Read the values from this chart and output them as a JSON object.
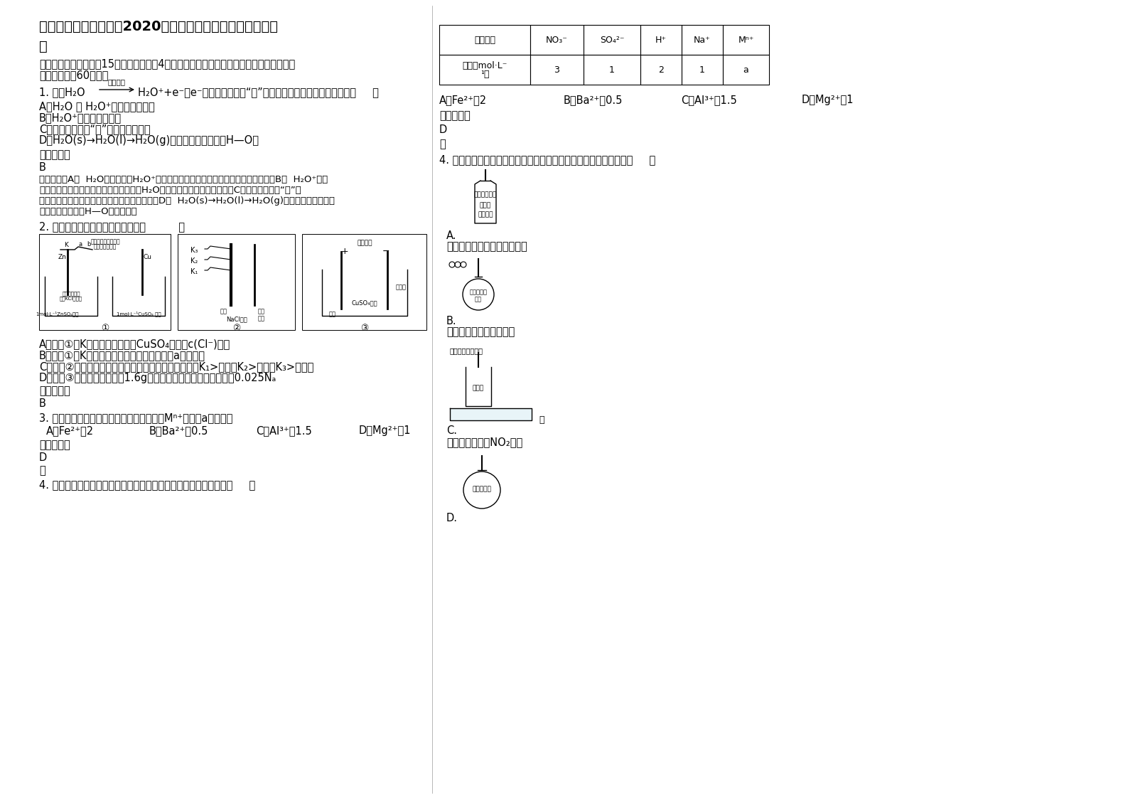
{
  "bg_color": "#ffffff",
  "title_line1": "四川省达州市陶成中学2020年高三化学下学期期末试卷含解",
  "title_line2": "析",
  "section1_line1": "一、单选题（本大题共15个小题，每小题4分。在每小题给出的四个选项中，只有一项符合",
  "section1_line2": "题目要求，共60分。）",
  "q1_prefix": "1. 已知H₂O",
  "q1_arrow_label": "高能射线",
  "q1_suffix": "H₂O⁺+e⁻，e⁻被水分子形成的“网”所捕获。下列有关说法正确的是（     ）",
  "q1_a": "A．H₂O 和 H₂O⁺互为同分异构体",
  "q1_b": "B．H₂O⁺有较强的氧化性",
  "q1_c": "C．水分子形成的“网”是一种新化合物",
  "q1_d": "D．H₂O(s)→H₂O(l)→H₂O(g)的变化过程中会破坏H—O键",
  "ans1_label": "参考答案：",
  "ans1": "B",
  "explain1_l1": "试题分析：A．  H₂O是分子，而H₂O⁺是离子，因此二者不能互为同分异构体，错误；B．  H₂O⁺是阳",
  "explain1_l2": "离子，很容易从外界获得一个电子，形成H₂O，故有较强的氧化性，正确；C．水分子形成的“网”是",
  "explain1_l3": "一种分子间作用力，不是一种新化合物，错误；D．  H₂O(s)→H₂O(l)→H₂O(g)的变化过程是物理变",
  "explain1_l4": "化，其中不会破坏H—O键，错误。",
  "q2_text": "2. 下列装置图及有关说法正确的是（          ）",
  "q2_a": "A．装置①中K键闭合时，片刻后CuSO₄溶液中c(Cl⁻)增大",
  "q2_b": "B．装置①中K键闭合时，片刻后可观察到滤纸a点变红色",
  "q2_c": "C．装置②中铁棒磁铁的磁度由大到小的顺序是：只闭合K₁>只闭合K₂>只闭合K₃>都断开",
  "q2_d": "D．装置③中当铜制品上析出1.6g铜时，电源负极输出的电子数为0.025Nₐ",
  "ans2_label": "参考答案：",
  "ans2": "B",
  "q3_text": "3. 某混合溶液中所含离子的浓度如下表，则Mⁿ⁺离子及a值可能为",
  "table_headers": [
    "所含离子",
    "NO₃⁻",
    "SO₄²⁻",
    "H⁺",
    "Na⁺",
    "Mⁿ⁺"
  ],
  "table_row1_label": "浓度（mol·L⁻",
  "table_row1_label2": "¹）",
  "table_row1_vals": [
    "3",
    "1",
    "2",
    "1",
    "a"
  ],
  "q3_a": "A．Fe²⁺、2",
  "q3_b": "B．Ba²⁺、0.5",
  "q3_c": "C．Al³⁺、1.5",
  "q3_d": "D．Mg²⁺、1",
  "ans3_label": "参考答案：",
  "ans3": "D",
  "ans3_explain": "略",
  "q4_text": "4. 正确的实验操作是实验成功的重要因素，下列实验操作正确的是（     ）",
  "q4_a_desc": "制备氢氧化亚铁并观察其颜色",
  "q4_b_desc": "碳酸、苯酚酸性强弱比较",
  "q4_c_desc": "制备并收集少量NO₂气体",
  "diag1_label1": "用饱和硫酸钠、酚酞",
  "diag1_label2": "溶液浸湿的滤纸",
  "diag1_bridge1": "盐桥（琼脂＋",
  "diag1_bridge2": "饱和KCl溶液）",
  "diag1_sol1": "1mol·L⁻¹ZnSO₄溶液",
  "diag1_sol2": "1mol·L⁻¹CuSO₄ 溶液",
  "diag2_nacl": "NaCl溶液",
  "diag3_label": "直流电源",
  "diag3_sol": "CuSO₄溶液",
  "appA_liq1": "氢氧化钠溶液",
  "appA_liq2": "稀盐酸",
  "appA_liq3": "亚铁溶液",
  "appB_liq": "浓的碳酸钠溶液",
  "appC_liq": "浓硝酸",
  "appC_label": "可上下移动的铜丝",
  "appD_liq": "饱和食盐水"
}
